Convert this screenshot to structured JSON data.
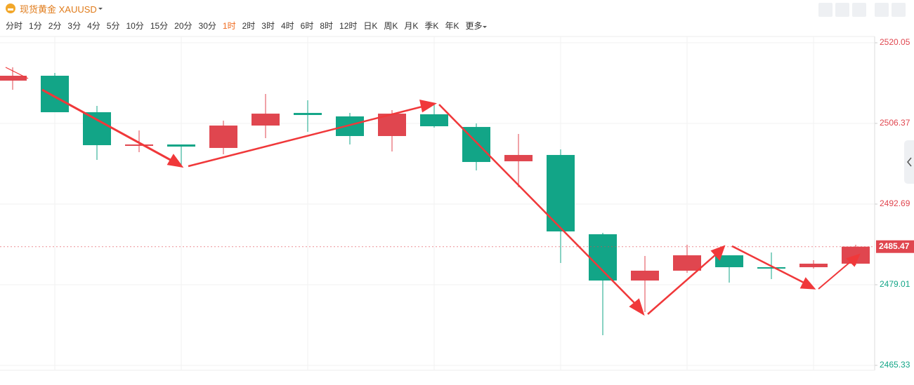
{
  "toolbar": {
    "symbol": "现货黄金 XAUUSD",
    "timeframes": [
      "分时",
      "1分",
      "2分",
      "3分",
      "4分",
      "5分",
      "10分",
      "15分",
      "20分",
      "30分",
      "1时",
      "2时",
      "3时",
      "4时",
      "6时",
      "8时",
      "12时",
      "日K",
      "周K",
      "月K",
      "季K",
      "年K",
      "更多"
    ],
    "active_timeframe": 10
  },
  "chart_data": {
    "type": "candlestick",
    "up_color": "#e0464f",
    "down_color": "#12a587",
    "open": [
      2513.63,
      2514.46,
      2508.27,
      2502.56,
      2502.8,
      2502.21,
      2506.01,
      2508.15,
      2507.56,
      2504.23,
      2507.92,
      2505.77,
      2499.95,
      2501.02,
      2487.57,
      2479.72,
      2481.39,
      2484.0,
      2481.98,
      2481.98,
      2482.58
    ],
    "high": [
      2515.89,
      2514.93,
      2509.34,
      2505.18,
      2502.8,
      2506.85,
      2511.37,
      2510.29,
      2508.15,
      2508.63,
      2509.82,
      2506.37,
      2504.58,
      2501.97,
      2487.81,
      2483.89,
      2485.79,
      2484.0,
      2484.48,
      2483.17,
      2485.79
    ],
    "low": [
      2512.08,
      2508.27,
      2500.18,
      2501.49,
      2499.35,
      2501.13,
      2503.87,
      2504.94,
      2502.8,
      2501.61,
      2505.66,
      2498.4,
      2495.54,
      2482.7,
      2470.44,
      2474.37,
      2481.03,
      2479.37,
      2479.96,
      2481.74,
      2482.34
    ],
    "close": [
      2514.46,
      2508.27,
      2502.68,
      2502.8,
      2502.44,
      2506.01,
      2508.03,
      2507.8,
      2504.23,
      2508.03,
      2505.89,
      2499.83,
      2501.02,
      2488.05,
      2479.72,
      2481.39,
      2484.0,
      2481.98,
      2481.74,
      2482.58,
      2485.47
    ],
    "last_price": 2485.47,
    "ylim": [
      2465.33,
      2520.05
    ],
    "yticks": [
      2520.05,
      2506.37,
      2492.69,
      2479.01,
      2465.33
    ],
    "grid": true
  }
}
